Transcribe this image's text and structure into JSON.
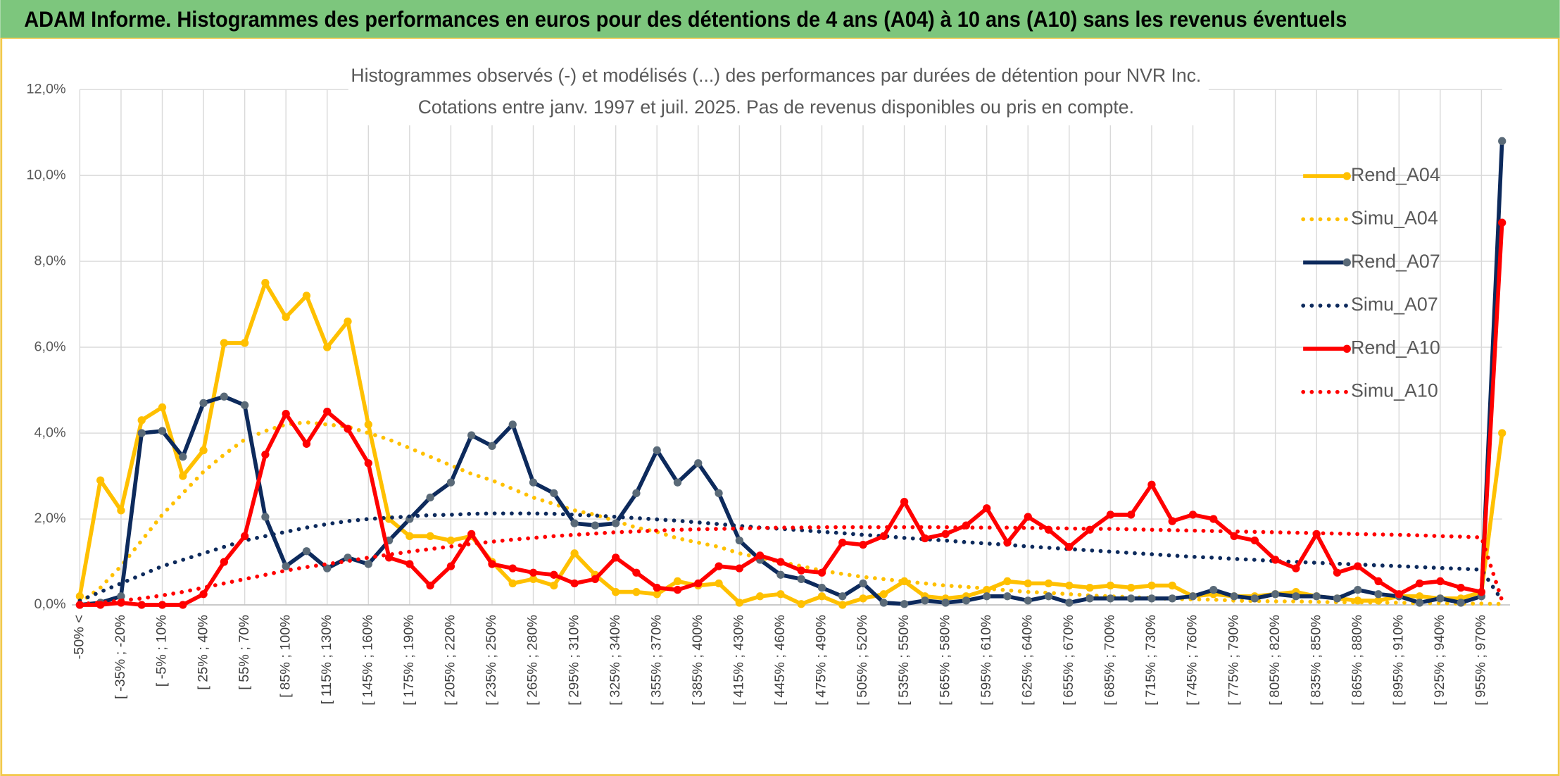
{
  "chart_data": {
    "type": "line",
    "header": "ADAM Informe. Histogrammes des performances en euros pour des détentions de 4 ans (A04) à 10 ans (A10) sans les revenus éventuels",
    "title": "Histogrammes observés (-) et modélisés (...) des performances par durées de détention pour NVR Inc.",
    "subtitle": "Cotations entre janv. 1997 et juil. 2025. Pas de revenus disponibles ou pris en compte.",
    "categories": [
      "-50% <",
      null,
      "[ -35% ; -20%",
      null,
      "[ -5% ; 10%",
      null,
      "[ 25% ; 40%",
      null,
      "[ 55% ; 70%",
      null,
      "[ 85% ; 100%",
      null,
      "[ 115% ; 130%",
      null,
      "[ 145% ; 160%",
      null,
      "[ 175% ; 190%",
      null,
      "[ 205% ; 220%",
      null,
      "[ 235% ; 250%",
      null,
      "[ 265% ; 280%",
      null,
      "[ 295% ; 310%",
      null,
      "[ 325% ; 340%",
      null,
      "[ 355% ; 370%",
      null,
      "[ 385% ; 400%",
      null,
      "[ 415% ; 430%",
      null,
      "[ 445% ; 460%",
      null,
      "[ 475% ; 490%",
      null,
      "[ 505% ; 520%",
      null,
      "[ 535% ; 550%",
      null,
      "[ 565% ; 580%",
      null,
      "[ 595% ; 610%",
      null,
      "[ 625% ; 640%",
      null,
      "[ 655% ; 670%",
      null,
      "[ 685% ; 700%",
      null,
      "[ 715% ; 730%",
      null,
      "[ 745% ; 760%",
      null,
      "[ 775% ; 790%",
      null,
      "[ 805% ; 820%",
      null,
      "[ 835% ; 850%",
      null,
      "[ 865% ; 880%",
      null,
      "[ 895% ; 910%",
      null,
      "[ 925% ; 940%",
      null,
      "[ 955% ; 970%",
      null
    ],
    "ylim": [
      0,
      12
    ],
    "yticks": [
      {
        "value": 0,
        "label": "0,0%"
      },
      {
        "value": 2,
        "label": "2,0%"
      },
      {
        "value": 4,
        "label": "4,0%"
      },
      {
        "value": 6,
        "label": "6,0%"
      },
      {
        "value": 8,
        "label": "8,0%"
      },
      {
        "value": 10,
        "label": "10,0%"
      },
      {
        "value": 12,
        "label": "12,0%"
      }
    ],
    "grid": true,
    "legend": "right",
    "series": [
      {
        "name": "Rend_A04",
        "color": "#ffc000",
        "line_style": "solid",
        "marker_color": "#ffc000",
        "values": [
          0.2,
          2.9,
          2.2,
          4.3,
          4.6,
          3.0,
          3.6,
          6.1,
          6.1,
          7.5,
          6.7,
          7.2,
          6.0,
          6.6,
          4.2,
          2.0,
          1.6,
          1.6,
          1.5,
          1.6,
          1.0,
          0.5,
          0.6,
          0.45,
          1.2,
          0.7,
          0.3,
          0.3,
          0.25,
          0.55,
          0.45,
          0.5,
          0.05,
          0.2,
          0.25,
          0.02,
          0.2,
          0.0,
          0.15,
          0.25,
          0.55,
          0.2,
          0.15,
          0.2,
          0.35,
          0.55,
          0.5,
          0.5,
          0.45,
          0.4,
          0.45,
          0.4,
          0.45,
          0.45,
          0.2,
          0.25,
          0.2,
          0.2,
          0.25,
          0.3,
          0.2,
          0.15,
          0.1,
          0.1,
          0.2,
          0.2,
          0.15,
          0.15,
          0.3,
          4.0
        ]
      },
      {
        "name": "Simu_A04",
        "color": "#ffc000",
        "line_style": "dotted",
        "values": [
          0.05,
          0.4,
          0.9,
          1.5,
          2.1,
          2.6,
          3.1,
          3.5,
          3.85,
          4.05,
          4.2,
          4.25,
          4.2,
          4.15,
          4.0,
          3.85,
          3.65,
          3.45,
          3.25,
          3.05,
          2.9,
          2.7,
          2.5,
          2.35,
          2.2,
          2.1,
          1.95,
          1.8,
          1.7,
          1.55,
          1.45,
          1.35,
          1.2,
          1.1,
          1.0,
          0.9,
          0.8,
          0.72,
          0.65,
          0.6,
          0.55,
          0.5,
          0.45,
          0.42,
          0.38,
          0.34,
          0.3,
          0.28,
          0.25,
          0.22,
          0.2,
          0.18,
          0.16,
          0.14,
          0.13,
          0.12,
          0.1,
          0.09,
          0.08,
          0.08,
          0.07,
          0.06,
          0.06,
          0.05,
          0.05,
          0.04,
          0.04,
          0.03,
          0.03,
          0.02
        ]
      },
      {
        "name": "Rend_A07",
        "color": "#0d2a5c",
        "line_style": "solid",
        "marker_color": "#5a6a78",
        "values": [
          0.0,
          0.05,
          0.2,
          4.0,
          4.05,
          3.45,
          4.7,
          4.85,
          4.65,
          2.05,
          0.9,
          1.25,
          0.85,
          1.1,
          0.95,
          1.5,
          2.0,
          2.5,
          2.85,
          3.95,
          3.7,
          4.2,
          2.85,
          2.6,
          1.9,
          1.85,
          1.9,
          2.6,
          3.6,
          2.85,
          3.3,
          2.6,
          1.5,
          1.05,
          0.7,
          0.6,
          0.4,
          0.2,
          0.5,
          0.05,
          0.02,
          0.1,
          0.05,
          0.1,
          0.2,
          0.2,
          0.1,
          0.2,
          0.05,
          0.15,
          0.15,
          0.15,
          0.15,
          0.15,
          0.2,
          0.35,
          0.2,
          0.15,
          0.25,
          0.2,
          0.2,
          0.15,
          0.35,
          0.25,
          0.2,
          0.05,
          0.15,
          0.05,
          0.2,
          10.8
        ]
      },
      {
        "name": "Simu_A07",
        "color": "#0d2a5c",
        "line_style": "dotted",
        "values": [
          0.1,
          0.3,
          0.5,
          0.7,
          0.9,
          1.05,
          1.2,
          1.35,
          1.5,
          1.6,
          1.7,
          1.8,
          1.88,
          1.95,
          2.0,
          2.03,
          2.06,
          2.09,
          2.1,
          2.12,
          2.13,
          2.13,
          2.13,
          2.12,
          2.1,
          2.08,
          2.05,
          2.02,
          1.99,
          1.96,
          1.92,
          1.88,
          1.84,
          1.8,
          1.77,
          1.74,
          1.7,
          1.67,
          1.63,
          1.6,
          1.56,
          1.53,
          1.5,
          1.46,
          1.43,
          1.4,
          1.36,
          1.33,
          1.3,
          1.27,
          1.24,
          1.21,
          1.18,
          1.15,
          1.12,
          1.1,
          1.07,
          1.05,
          1.02,
          1.0,
          0.98,
          0.96,
          0.94,
          0.92,
          0.9,
          0.88,
          0.86,
          0.84,
          0.82,
          0.1
        ]
      },
      {
        "name": "Rend_A10",
        "color": "#ff0000",
        "line_style": "solid",
        "marker_color": "#ff0000",
        "values": [
          0.0,
          0.0,
          0.05,
          0.0,
          0.0,
          0.0,
          0.25,
          1.0,
          1.6,
          3.5,
          4.45,
          3.75,
          4.5,
          4.1,
          3.3,
          1.1,
          0.95,
          0.45,
          0.9,
          1.65,
          0.95,
          0.85,
          0.75,
          0.7,
          0.5,
          0.6,
          1.1,
          0.75,
          0.4,
          0.35,
          0.5,
          0.9,
          0.85,
          1.15,
          1.0,
          0.8,
          0.75,
          1.45,
          1.4,
          1.6,
          2.4,
          1.55,
          1.65,
          1.85,
          2.25,
          1.45,
          2.05,
          1.75,
          1.35,
          1.75,
          2.1,
          2.1,
          2.8,
          1.95,
          2.1,
          2.0,
          1.6,
          1.5,
          1.05,
          0.85,
          1.65,
          0.75,
          0.9,
          0.55,
          0.25,
          0.5,
          0.55,
          0.4,
          0.3,
          8.9
        ]
      },
      {
        "name": "Simu_A10",
        "color": "#ff0000",
        "line_style": "dotted",
        "values": [
          0.02,
          0.05,
          0.1,
          0.15,
          0.22,
          0.3,
          0.4,
          0.5,
          0.6,
          0.7,
          0.8,
          0.88,
          0.95,
          1.02,
          1.1,
          1.17,
          1.24,
          1.3,
          1.36,
          1.42,
          1.47,
          1.52,
          1.56,
          1.6,
          1.63,
          1.66,
          1.69,
          1.71,
          1.73,
          1.75,
          1.76,
          1.77,
          1.78,
          1.79,
          1.8,
          1.8,
          1.81,
          1.81,
          1.81,
          1.81,
          1.81,
          1.81,
          1.81,
          1.8,
          1.8,
          1.8,
          1.79,
          1.79,
          1.78,
          1.77,
          1.77,
          1.76,
          1.75,
          1.74,
          1.73,
          1.72,
          1.71,
          1.7,
          1.69,
          1.68,
          1.67,
          1.66,
          1.65,
          1.64,
          1.63,
          1.62,
          1.6,
          1.59,
          1.57,
          0.1
        ]
      }
    ]
  }
}
